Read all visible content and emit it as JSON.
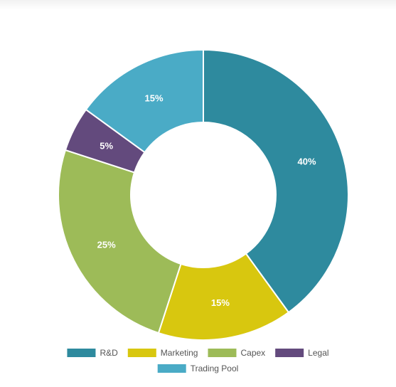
{
  "chart_data": {
    "type": "pie",
    "donut": true,
    "title": "",
    "slices": [
      {
        "label": "R&D",
        "value": 40,
        "display": "40%",
        "color": "#2e8a9e"
      },
      {
        "label": "Marketing",
        "value": 15,
        "display": "15%",
        "color": "#d8c70f"
      },
      {
        "label": "Capex",
        "value": 25,
        "display": "25%",
        "color": "#9dbb58"
      },
      {
        "label": "Legal",
        "value": 5,
        "display": "5%",
        "color": "#634a7d"
      },
      {
        "label": "Trading Pool",
        "value": 15,
        "display": "15%",
        "color": "#4aabc6"
      }
    ],
    "legend_position": "bottom"
  }
}
